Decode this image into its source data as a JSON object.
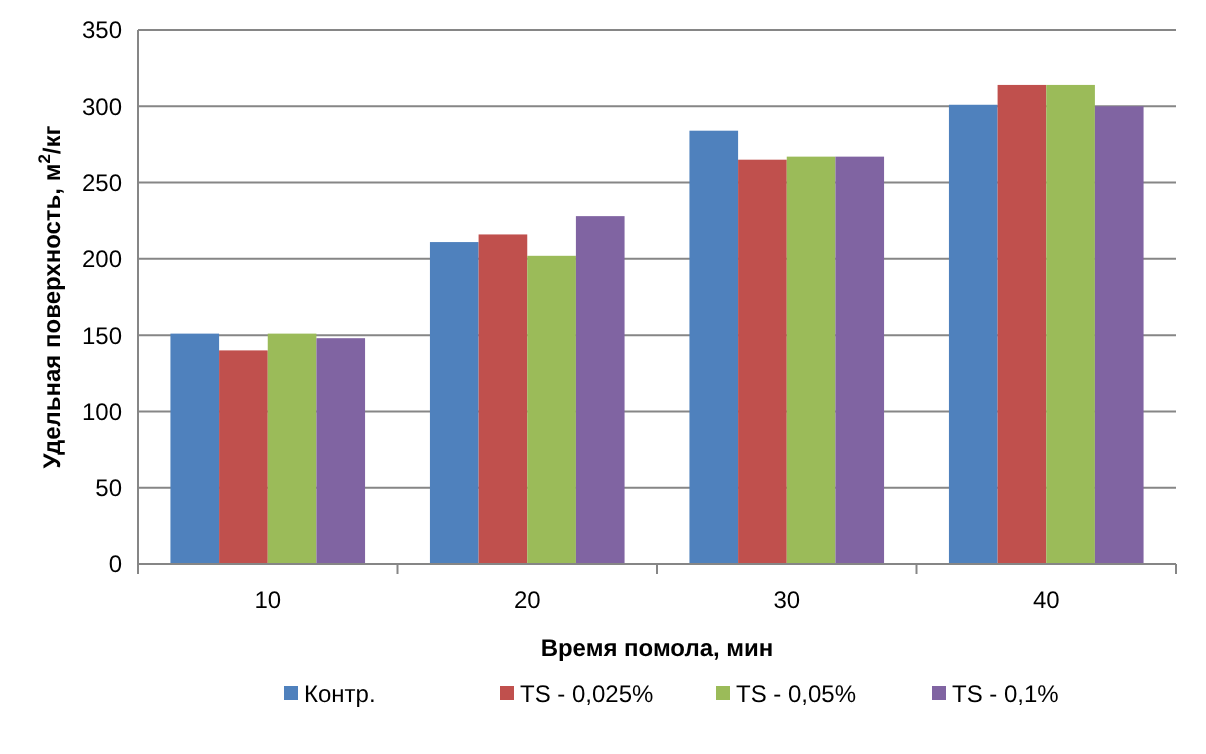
{
  "chart_data": {
    "type": "bar",
    "xlabel": "Время помола, мин",
    "ylabel": "Удельная поверхность, м$^{2}$/кг",
    "categories": [
      "10",
      "20",
      "30",
      "40"
    ],
    "series": [
      {
        "name": "Контр.",
        "color": "#4f81bd",
        "values": [
          151,
          211,
          284,
          301
        ]
      },
      {
        "name": "TS - 0,025%",
        "color": "#c0504d",
        "values": [
          140,
          216,
          265,
          314
        ]
      },
      {
        "name": "TS - 0,05%",
        "color": "#9bbb59",
        "values": [
          151,
          202,
          267,
          314
        ]
      },
      {
        "name": "TS - 0,1%",
        "color": "#8064a2",
        "values": [
          148,
          228,
          267,
          300
        ]
      }
    ],
    "ylim": [
      0,
      350
    ],
    "yticks": [
      0,
      50,
      100,
      150,
      200,
      250,
      300,
      350
    ],
    "grid": "y",
    "legend": "bottom"
  }
}
